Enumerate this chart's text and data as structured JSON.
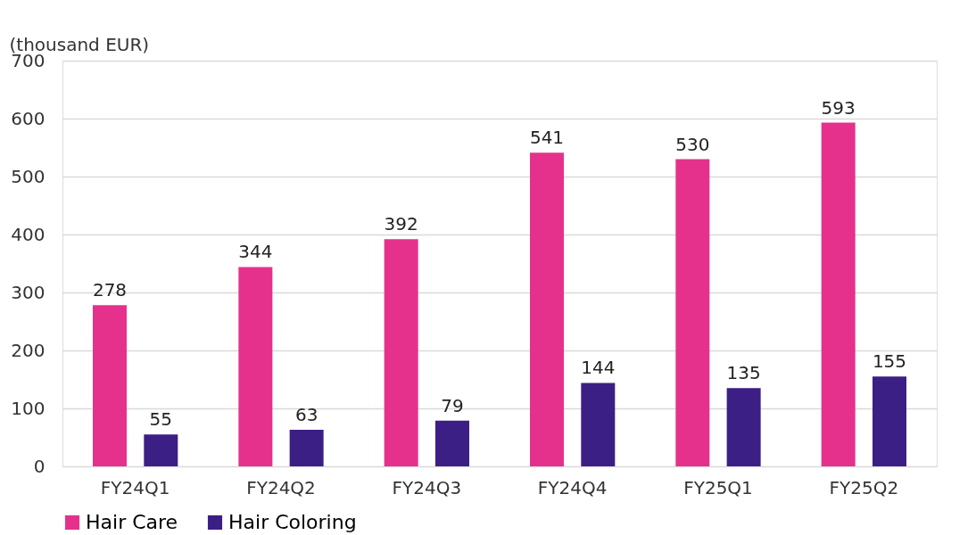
{
  "chart_data": {
    "type": "bar",
    "ylabel": "(thousand EUR)",
    "categories": [
      "FY24Q1",
      "FY24Q2",
      "FY24Q3",
      "FY24Q4",
      "FY25Q1",
      "FY25Q2"
    ],
    "series": [
      {
        "name": "Hair Care",
        "color": "#e5318b",
        "values": [
          278,
          344,
          392,
          541,
          530,
          593
        ]
      },
      {
        "name": "Hair Coloring",
        "color": "#3b1f85",
        "values": [
          55,
          63,
          79,
          144,
          135,
          155
        ]
      }
    ],
    "ylim": [
      0,
      700
    ],
    "yticks": [
      0,
      100,
      200,
      300,
      400,
      500,
      600,
      700
    ],
    "grid": "y",
    "legend": "bottom",
    "data_labels": true
  }
}
